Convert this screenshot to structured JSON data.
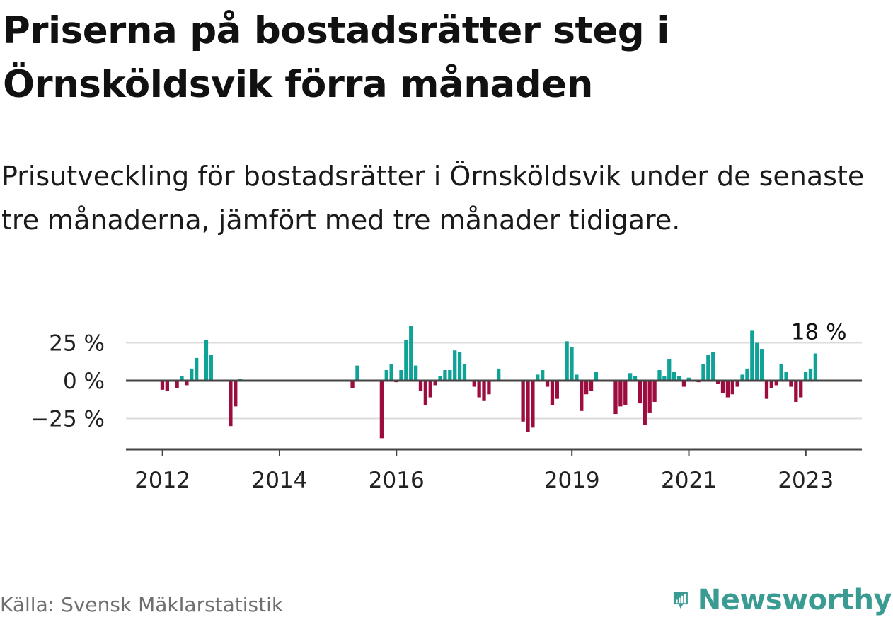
{
  "title": "Priserna på bostadsrätter steg i Örnsköldsvik förra månaden",
  "subtitle": "Prisutveckling för bostadsrätter i Örnsköldsvik under de senaste tre månaderna, jämfört med tre månader tidigare.",
  "source": "Källa: Svensk Mäklarstatistik",
  "brand": {
    "name": "Newsworthy",
    "icon": "newsworthy-logo-icon",
    "color": "#3a9b92"
  },
  "colors": {
    "positive": "#0fa398",
    "negative": "#9c0c3f",
    "zero_line": "#444444",
    "grid": "#dcdcdc"
  },
  "chart_data": {
    "type": "bar",
    "x_unit": "month",
    "x_ticks": [
      "2012",
      "2014",
      "2016",
      "2019",
      "2021",
      "2023"
    ],
    "y_ticks": [
      "25 %",
      "0 %",
      "−25 %"
    ],
    "y_tick_values": [
      25,
      0,
      -25
    ],
    "ylim": [
      -45,
      40
    ],
    "xlim": [
      "2011-06",
      "2023-12"
    ],
    "grid": true,
    "last_label": "18 %",
    "series": [
      {
        "values": [
          [
            "2012-01",
            -6
          ],
          [
            "2012-02",
            -7
          ],
          [
            "2012-04",
            -5
          ],
          [
            "2012-05",
            3
          ],
          [
            "2012-06",
            -3
          ],
          [
            "2012-07",
            8
          ],
          [
            "2012-08",
            15
          ],
          [
            "2012-10",
            27
          ],
          [
            "2012-11",
            17
          ],
          [
            "2013-03",
            -30
          ],
          [
            "2013-04",
            -17
          ],
          [
            "2013-05",
            1
          ],
          [
            "2015-04",
            -5
          ],
          [
            "2015-05",
            10
          ],
          [
            "2015-10",
            -38
          ],
          [
            "2015-11",
            7
          ],
          [
            "2015-12",
            11
          ],
          [
            "2016-01",
            -1
          ],
          [
            "2016-02",
            7
          ],
          [
            "2016-03",
            27
          ],
          [
            "2016-04",
            36
          ],
          [
            "2016-05",
            10
          ],
          [
            "2016-06",
            -7
          ],
          [
            "2016-07",
            -16
          ],
          [
            "2016-08",
            -11
          ],
          [
            "2016-09",
            -3
          ],
          [
            "2016-10",
            3
          ],
          [
            "2016-11",
            7
          ],
          [
            "2016-12",
            7
          ],
          [
            "2017-01",
            20
          ],
          [
            "2017-02",
            19
          ],
          [
            "2017-03",
            11
          ],
          [
            "2017-05",
            -4
          ],
          [
            "2017-06",
            -11
          ],
          [
            "2017-07",
            -13
          ],
          [
            "2017-08",
            -9
          ],
          [
            "2017-10",
            8
          ],
          [
            "2018-03",
            -27
          ],
          [
            "2018-04",
            -34
          ],
          [
            "2018-05",
            -31
          ],
          [
            "2018-06",
            4
          ],
          [
            "2018-07",
            7
          ],
          [
            "2018-08",
            -4
          ],
          [
            "2018-09",
            -16
          ],
          [
            "2018-10",
            -12
          ],
          [
            "2018-12",
            26
          ],
          [
            "2019-01",
            22
          ],
          [
            "2019-02",
            4
          ],
          [
            "2019-03",
            -20
          ],
          [
            "2019-04",
            -9
          ],
          [
            "2019-05",
            -7
          ],
          [
            "2019-06",
            6
          ],
          [
            "2019-10",
            -22
          ],
          [
            "2019-11",
            -17
          ],
          [
            "2019-12",
            -16
          ],
          [
            "2020-01",
            5
          ],
          [
            "2020-02",
            3
          ],
          [
            "2020-03",
            -15
          ],
          [
            "2020-04",
            -29
          ],
          [
            "2020-05",
            -21
          ],
          [
            "2020-06",
            -14
          ],
          [
            "2020-07",
            7
          ],
          [
            "2020-08",
            3
          ],
          [
            "2020-09",
            14
          ],
          [
            "2020-10",
            6
          ],
          [
            "2020-11",
            3
          ],
          [
            "2020-12",
            -4
          ],
          [
            "2021-01",
            2
          ],
          [
            "2021-03",
            -1
          ],
          [
            "2021-04",
            11
          ],
          [
            "2021-05",
            17
          ],
          [
            "2021-06",
            19
          ],
          [
            "2021-07",
            -2
          ],
          [
            "2021-08",
            -8
          ],
          [
            "2021-09",
            -11
          ],
          [
            "2021-10",
            -9
          ],
          [
            "2021-11",
            -4
          ],
          [
            "2021-12",
            4
          ],
          [
            "2022-01",
            8
          ],
          [
            "2022-02",
            33
          ],
          [
            "2022-03",
            25
          ],
          [
            "2022-04",
            21
          ],
          [
            "2022-05",
            -12
          ],
          [
            "2022-06",
            -5
          ],
          [
            "2022-07",
            -3
          ],
          [
            "2022-08",
            11
          ],
          [
            "2022-09",
            6
          ],
          [
            "2022-10",
            -4
          ],
          [
            "2022-11",
            -14
          ],
          [
            "2022-12",
            -11
          ],
          [
            "2023-01",
            6
          ],
          [
            "2023-02",
            8
          ],
          [
            "2023-03",
            18
          ]
        ]
      }
    ]
  }
}
